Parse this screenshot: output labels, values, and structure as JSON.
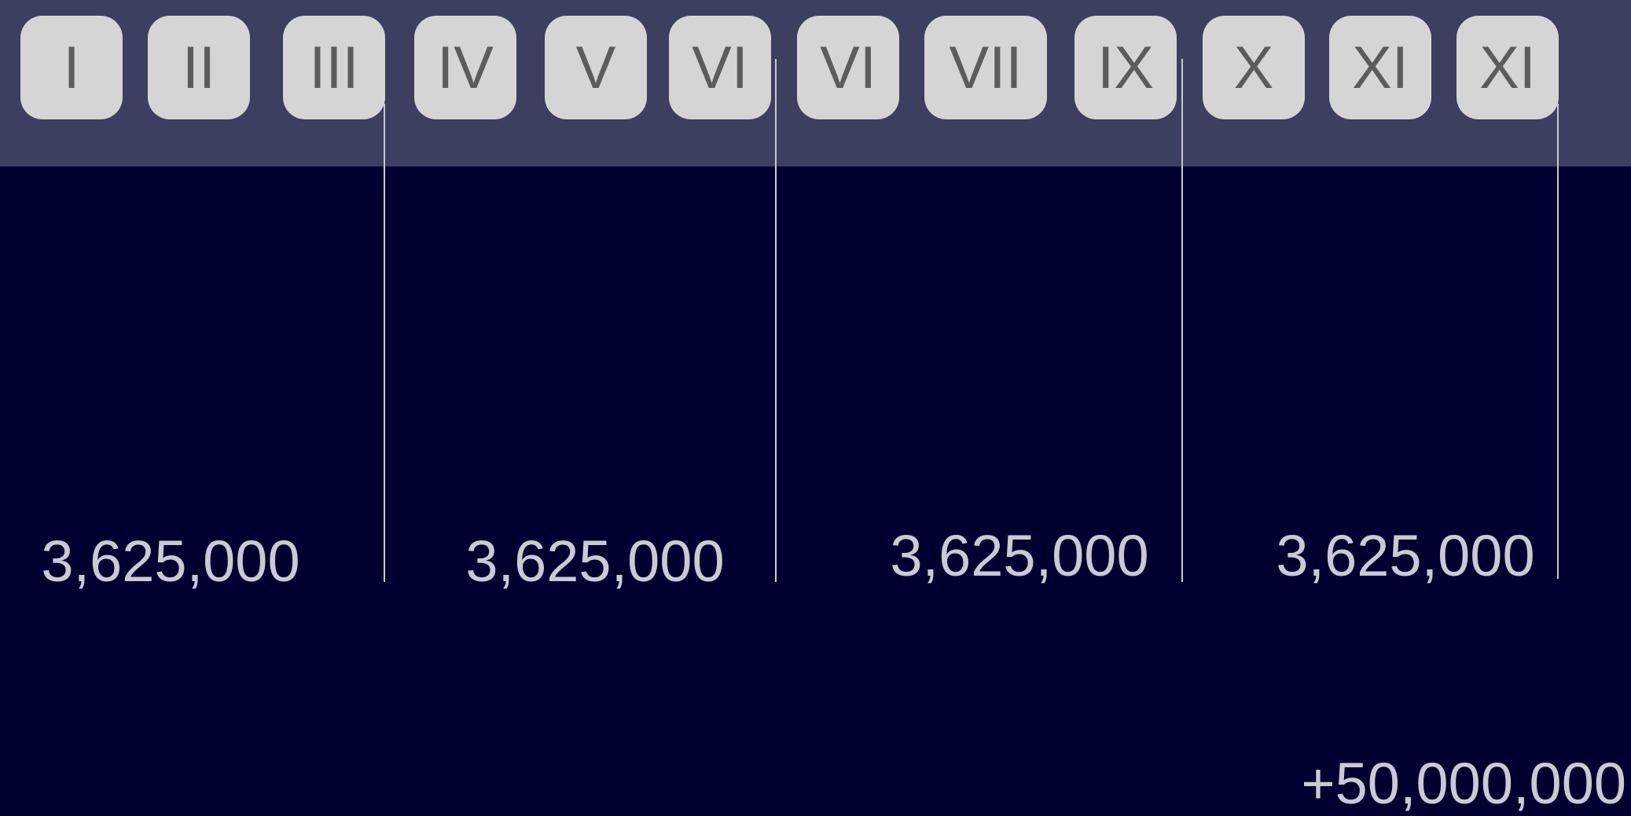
{
  "buttons": [
    "I",
    "II",
    "III",
    "IV",
    "V",
    "VI",
    "VI",
    "VII",
    "IX",
    "X",
    "XI",
    "XI"
  ],
  "amounts": [
    "3,625,000",
    "3,625,000",
    "3,625,000",
    "3,625,000"
  ],
  "total": "+50,000,000"
}
